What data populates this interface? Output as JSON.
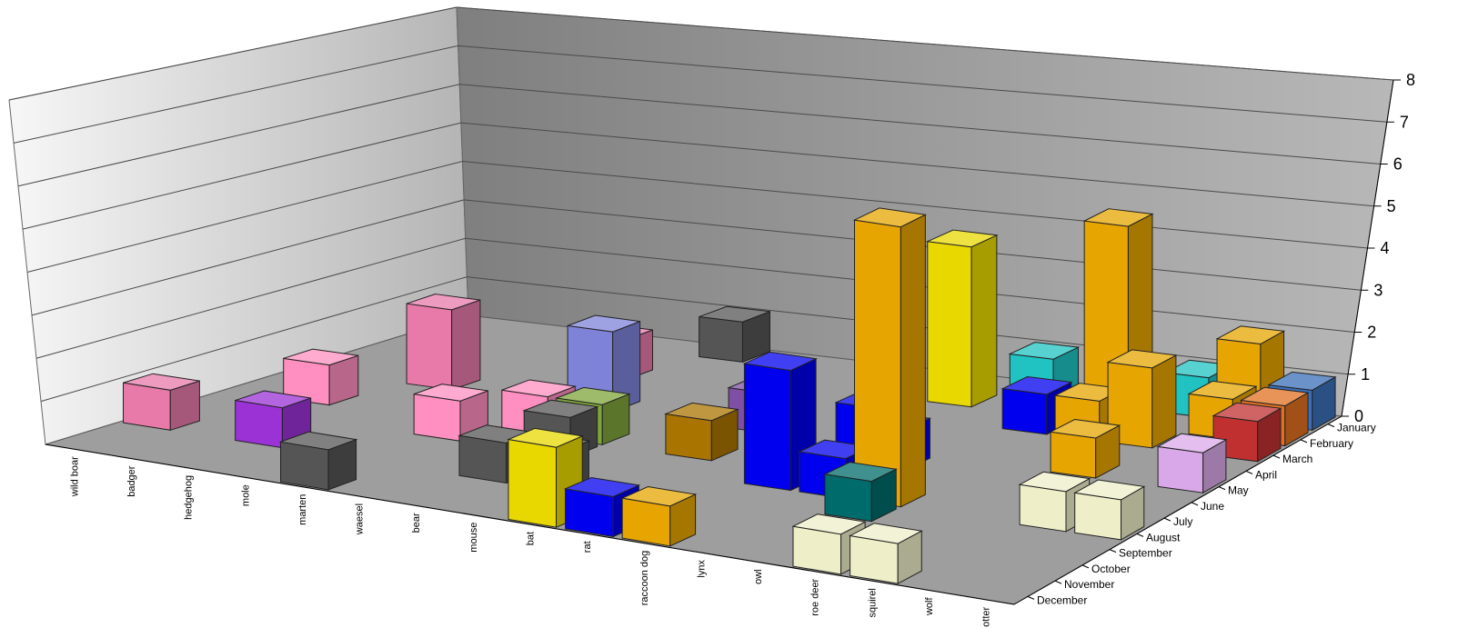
{
  "chart_data": {
    "type": "bar",
    "chart_subtype": "3d-column",
    "title": "",
    "xlabel": "",
    "ylabel": "",
    "zlim": [
      0,
      8
    ],
    "z_ticks": [
      "0",
      "1",
      "2",
      "3",
      "4",
      "5",
      "6",
      "7",
      "8"
    ],
    "grid": true,
    "legend": "none",
    "categories": [
      "wild boar",
      "badger",
      "hedgehog",
      "mole",
      "marten",
      "waesel",
      "bear",
      "mouse",
      "bat",
      "rat",
      "raccoon dog",
      "lynx",
      "owl",
      "roe deer",
      "squirel",
      "wolf",
      "otter"
    ],
    "months": [
      "January",
      "February",
      "March",
      "April",
      "May",
      "June",
      "July",
      "August",
      "September",
      "October",
      "November",
      "December"
    ],
    "points": [
      {
        "category": "wild boar",
        "month": "October",
        "value": 1,
        "color": "#e77aa9"
      },
      {
        "category": "badger",
        "month": "July",
        "value": 1,
        "color": "#ff8fc0"
      },
      {
        "category": "hedgehog",
        "month": "May",
        "value": 2,
        "color": "#e77aa9"
      },
      {
        "category": "hedgehog",
        "month": "October",
        "value": 1,
        "color": "#9a32d6"
      },
      {
        "category": "marten",
        "month": "March",
        "value": 1,
        "color": "#e77aa9"
      },
      {
        "category": "marten",
        "month": "August",
        "value": 1,
        "color": "#ff8fc0"
      },
      {
        "category": "marten",
        "month": "December",
        "value": 1,
        "color": "#555555"
      },
      {
        "category": "waesel",
        "month": "January",
        "value": 1,
        "color": "#555555"
      },
      {
        "category": "waesel",
        "month": "May",
        "value": 2,
        "color": "#7f83d8"
      },
      {
        "category": "waesel",
        "month": "July",
        "value": 1,
        "color": "#ff8fc0"
      },
      {
        "category": "bear",
        "month": "July",
        "value": 1,
        "color": "#7ea33a"
      },
      {
        "category": "bear",
        "month": "August",
        "value": 1,
        "color": "#555555"
      },
      {
        "category": "bear",
        "month": "October",
        "value": 1,
        "color": "#555555"
      },
      {
        "category": "mouse",
        "month": "October",
        "value": 1,
        "color": "#555555"
      },
      {
        "category": "bat",
        "month": "December",
        "value": 2,
        "color": "#e8d800"
      },
      {
        "category": "bat",
        "month": "May",
        "value": 1,
        "color": "#7e4fa3"
      },
      {
        "category": "bat",
        "month": "July",
        "value": 1,
        "color": "#a97400"
      },
      {
        "category": "rat",
        "month": "December",
        "value": 1,
        "color": "#0000ee"
      },
      {
        "category": "raccoon dog",
        "month": "August",
        "value": 3,
        "color": "#0000ee"
      },
      {
        "category": "raccoon dog",
        "month": "May",
        "value": 1,
        "color": "#0000ee"
      },
      {
        "category": "raccoon dog",
        "month": "December",
        "value": 1,
        "color": "#e6a500"
      },
      {
        "category": "raccoon dog",
        "month": "February",
        "value": 4,
        "color": "#e8d800"
      },
      {
        "category": "lynx",
        "month": "June",
        "value": 1,
        "color": "#0000ee"
      },
      {
        "category": "lynx",
        "month": "August",
        "value": 1,
        "color": "#0000ee"
      },
      {
        "category": "lynx",
        "month": "January",
        "value": 1,
        "color": "#20c2c2"
      },
      {
        "category": "owl",
        "month": "August",
        "value": 7,
        "color": "#e6a500"
      },
      {
        "category": "owl",
        "month": "March",
        "value": 1,
        "color": "#0000ee"
      },
      {
        "category": "owl",
        "month": "September",
        "value": 1,
        "color": "#006b6b"
      },
      {
        "category": "roe deer",
        "month": "March",
        "value": 1,
        "color": "#e6a500"
      },
      {
        "category": "roe deer",
        "month": "February",
        "value": 5,
        "color": "#e6a500"
      },
      {
        "category": "roe deer",
        "month": "December",
        "value": 1,
        "color": "#eeeec8"
      },
      {
        "category": "squirel",
        "month": "January",
        "value": 1,
        "color": "#20c2c2"
      },
      {
        "category": "squirel",
        "month": "May",
        "value": 1,
        "color": "#e6a500"
      },
      {
        "category": "squirel",
        "month": "March",
        "value": 2,
        "color": "#e6a500"
      },
      {
        "category": "squirel",
        "month": "December",
        "value": 1,
        "color": "#eeeec8"
      },
      {
        "category": "wolf",
        "month": "February",
        "value": 1,
        "color": "#e6a500"
      },
      {
        "category": "wolf",
        "month": "January",
        "value": 2,
        "color": "#e6a500"
      },
      {
        "category": "wolf",
        "month": "August",
        "value": 1,
        "color": "#eeeec8"
      },
      {
        "category": "otter",
        "month": "May",
        "value": 1,
        "color": "#d9a8e8"
      },
      {
        "category": "otter",
        "month": "August",
        "value": 1,
        "color": "#eeeec8"
      },
      {
        "category": "otter",
        "month": "February",
        "value": 1,
        "color": "#e07020"
      },
      {
        "category": "otter",
        "month": "January",
        "value": 1,
        "color": "#3a6fb8"
      },
      {
        "category": "otter",
        "month": "March",
        "value": 1,
        "color": "#c03030"
      }
    ]
  }
}
